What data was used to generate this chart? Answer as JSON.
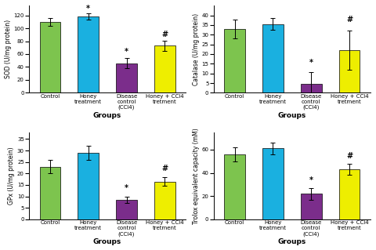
{
  "panels": [
    {
      "ylabel": "SOD (U/mg protein)",
      "categories": [
        "Control",
        "Honey\ntreatment",
        "Disease\ncontrol\n(CCl4)",
        "Honey + CCl4\ntretment"
      ],
      "values": [
        110,
        118,
        46,
        73
      ],
      "errors": [
        6,
        5,
        8,
        8
      ],
      "ylim": [
        0,
        135
      ],
      "yticks": [
        0,
        20,
        40,
        60,
        80,
        100,
        120
      ],
      "xlabel": "Groups",
      "sig_markers": [
        "",
        "*",
        "*",
        "#"
      ],
      "sig_above_error": [
        0,
        2,
        3,
        3
      ]
    },
    {
      "ylabel": "Catalase (U/mg protein)",
      "categories": [
        "Control",
        "Honey\ntreatment",
        "Disease\ncontrol\n(CCl4)",
        "Honey + CCl4\ntretment"
      ],
      "values": [
        33,
        35.5,
        4.5,
        22
      ],
      "errors": [
        5,
        3,
        6,
        10
      ],
      "ylim": [
        0,
        45
      ],
      "yticks": [
        0,
        5,
        10,
        15,
        20,
        25,
        30,
        35,
        40
      ],
      "xlabel": "Groups",
      "sig_markers": [
        "",
        "",
        "*",
        "#"
      ],
      "sig_above_error": [
        0,
        0,
        3,
        4
      ]
    },
    {
      "ylabel": "GPx (U/mg protein)",
      "categories": [
        "Control",
        "Honey\ntreatment",
        "Disease\ncontrol\n(CCl4)",
        "Honey + CCl4\ntretment"
      ],
      "values": [
        23,
        29,
        8.5,
        16.5
      ],
      "errors": [
        3,
        3,
        1.5,
        2
      ],
      "ylim": [
        0,
        38
      ],
      "yticks": [
        0,
        5,
        10,
        15,
        20,
        25,
        30,
        35
      ],
      "xlabel": "Groups",
      "sig_markers": [
        "",
        "",
        "*",
        "#"
      ],
      "sig_above_error": [
        0,
        0,
        2,
        2
      ]
    },
    {
      "ylabel": "Trolox equivalent capacity (mM)",
      "categories": [
        "Control",
        "Honey\ntreatment",
        "Disease\ncontrol\n(CCl4)",
        "Honey + CCl4\ntretment"
      ],
      "values": [
        56,
        61,
        22,
        43
      ],
      "errors": [
        6,
        5,
        5,
        5
      ],
      "ylim": [
        0,
        75
      ],
      "yticks": [
        0,
        20,
        40,
        60
      ],
      "xlabel": "Groups",
      "sig_markers": [
        "",
        "",
        "*",
        "#"
      ],
      "sig_above_error": [
        0,
        0,
        3,
        3
      ]
    }
  ],
  "bar_colors": [
    "#7DC44E",
    "#1AB0E0",
    "#7B2D8B",
    "#EEEE00"
  ],
  "bar_edgecolor": "black",
  "sig_fontsize": 7,
  "axis_label_fontsize": 5.5,
  "tick_fontsize": 5,
  "xlabel_fontsize": 6.5
}
